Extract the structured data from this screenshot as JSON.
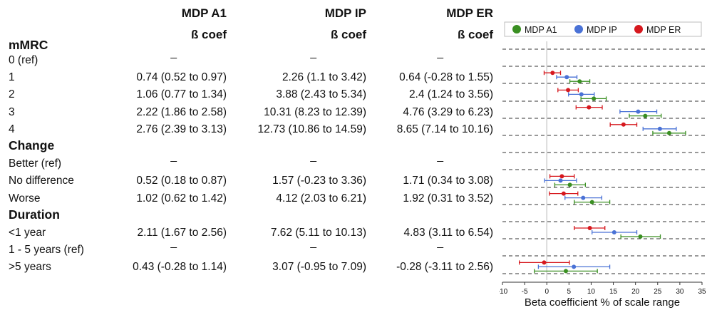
{
  "columns": [
    {
      "title": "MDP A1",
      "subtitle": "ß coef"
    },
    {
      "title": "MDP IP",
      "subtitle": "ß coef"
    },
    {
      "title": "MDP ER",
      "subtitle": "ß coef"
    }
  ],
  "rows": [
    {
      "kind": "section",
      "label": "mMRC"
    },
    {
      "kind": "ref",
      "label": "0 (ref)",
      "values": [
        "_",
        "_",
        "_"
      ]
    },
    {
      "kind": "data",
      "label": "1",
      "values": [
        "0.74 (0.52 to 0.97)",
        "2.26 (1.1 to 3.42)",
        "0.64 (-0.28 to 1.55)"
      ]
    },
    {
      "kind": "data",
      "label": "2",
      "values": [
        "1.06 (0.77 to 1.34)",
        "3.88 (2.43 to 5.34)",
        "2.4 (1.24 to 3.56)"
      ]
    },
    {
      "kind": "data",
      "label": "3",
      "values": [
        "2.22 (1.86 to 2.58)",
        "10.31 (8.23 to 12.39)",
        "4.76 (3.29 to 6.23)"
      ]
    },
    {
      "kind": "data",
      "label": "4",
      "values": [
        "2.76 (2.39 to 3.13)",
        "12.73 (10.86 to 14.59)",
        "8.65 (7.14 to 10.16)"
      ]
    },
    {
      "kind": "section",
      "label": "Change"
    },
    {
      "kind": "ref",
      "label": "Better (ref)",
      "values": [
        "_",
        "_",
        "_"
      ]
    },
    {
      "kind": "data",
      "label": "No difference",
      "values": [
        "0.52 (0.18 to 0.87)",
        "1.57 (-0.23 to 3.36)",
        "1.71 (0.34 to 3.08)"
      ]
    },
    {
      "kind": "data",
      "label": "Worse",
      "values": [
        "1.02 (0.62 to 1.42)",
        "4.12 (2.03 to 6.21)",
        "1.92 (0.31 to 3.52)"
      ]
    },
    {
      "kind": "section",
      "label": "Duration"
    },
    {
      "kind": "data",
      "label": "<1 year",
      "values": [
        "2.11 (1.67 to 2.56)",
        "7.62 (5.11 to 10.13)",
        "4.83 (3.11 to 6.54)"
      ]
    },
    {
      "kind": "ref",
      "label": "1 - 5 years (ref)",
      "values": [
        "_",
        "_",
        "_"
      ]
    },
    {
      "kind": "data",
      "label": ">5 years",
      "values": [
        "0.43 (-0.28 to 1.14)",
        "3.07 (-0.95 to 7.09)",
        "-0.28 (-3.11 to 2.56)"
      ]
    }
  ],
  "chart_data": {
    "type": "scatter",
    "subtype": "forest-plot",
    "xlabel": "Beta coefficient % of scale range",
    "xlim": [
      -10,
      35
    ],
    "xticks": [
      -10,
      -5,
      0,
      5,
      10,
      15,
      20,
      25,
      30,
      35
    ],
    "reference_line": 0,
    "legend": {
      "placement": "top",
      "entries": [
        "MDP A1",
        "MDP IP",
        "MDP ER"
      ]
    },
    "colors": {
      "MDP A1": "#3a8f22",
      "MDP IP": "#4a72d6",
      "MDP ER": "#d6181e"
    },
    "categories": [
      "0 (ref)",
      "1",
      "2",
      "3",
      "4",
      "Better (ref)",
      "No difference",
      "Worse",
      "<1 year",
      "1 - 5 years (ref)",
      ">5 years"
    ],
    "series": [
      {
        "name": "MDP A1",
        "points": [
          {
            "category": "1",
            "est": 7.4,
            "lo": 5.2,
            "hi": 9.7
          },
          {
            "category": "2",
            "est": 10.6,
            "lo": 7.7,
            "hi": 13.4
          },
          {
            "category": "3",
            "est": 22.2,
            "lo": 18.6,
            "hi": 25.8
          },
          {
            "category": "4",
            "est": 27.6,
            "lo": 23.9,
            "hi": 31.3
          },
          {
            "category": "No difference",
            "est": 5.2,
            "lo": 1.8,
            "hi": 8.7
          },
          {
            "category": "Worse",
            "est": 10.2,
            "lo": 6.2,
            "hi": 14.2
          },
          {
            "category": "<1 year",
            "est": 21.1,
            "lo": 16.7,
            "hi": 25.6
          },
          {
            "category": ">5 years",
            "est": 4.3,
            "lo": -2.8,
            "hi": 11.4
          }
        ]
      },
      {
        "name": "MDP IP",
        "points": [
          {
            "category": "1",
            "est": 4.5,
            "lo": 2.2,
            "hi": 6.8
          },
          {
            "category": "2",
            "est": 7.8,
            "lo": 4.9,
            "hi": 10.7
          },
          {
            "category": "3",
            "est": 20.6,
            "lo": 16.5,
            "hi": 24.8
          },
          {
            "category": "4",
            "est": 25.5,
            "lo": 21.7,
            "hi": 29.2
          },
          {
            "category": "No difference",
            "est": 3.1,
            "lo": -0.5,
            "hi": 6.7
          },
          {
            "category": "Worse",
            "est": 8.2,
            "lo": 4.1,
            "hi": 12.4
          },
          {
            "category": "<1 year",
            "est": 15.2,
            "lo": 10.2,
            "hi": 20.3
          },
          {
            "category": ">5 years",
            "est": 6.1,
            "lo": -1.9,
            "hi": 14.2
          }
        ]
      },
      {
        "name": "MDP ER",
        "points": [
          {
            "category": "1",
            "est": 1.3,
            "lo": -0.6,
            "hi": 3.1
          },
          {
            "category": "2",
            "est": 4.8,
            "lo": 2.5,
            "hi": 7.1
          },
          {
            "category": "3",
            "est": 9.5,
            "lo": 6.6,
            "hi": 12.5
          },
          {
            "category": "4",
            "est": 17.3,
            "lo": 14.3,
            "hi": 20.3
          },
          {
            "category": "No difference",
            "est": 3.4,
            "lo": 0.7,
            "hi": 6.2
          },
          {
            "category": "Worse",
            "est": 3.8,
            "lo": 0.6,
            "hi": 7.0
          },
          {
            "category": "<1 year",
            "est": 9.7,
            "lo": 6.2,
            "hi": 13.1
          },
          {
            "category": ">5 years",
            "est": -0.6,
            "lo": -6.2,
            "hi": 5.1
          }
        ]
      }
    ]
  }
}
